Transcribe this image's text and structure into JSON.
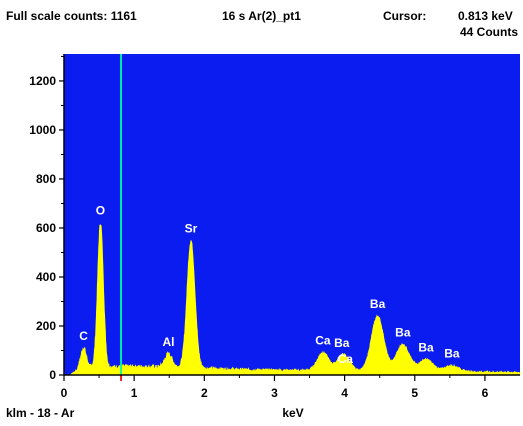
{
  "header": {
    "full_scale": "Full scale counts: 1161",
    "acq": "16 s  Ar(2)_pt1",
    "cursor_label": "Cursor:",
    "cursor_value": "0.813 keV",
    "cursor_counts": "44 Counts"
  },
  "footer": {
    "sample": "klm - 18 - Ar"
  },
  "colors": {
    "plot_bg": "#0a1cf0",
    "spectrum": "#ffff00",
    "cursor": "#00ffa0",
    "cursor_mark": "#ff2020"
  },
  "chart_data": {
    "type": "area",
    "title": "",
    "xlabel": "keV",
    "ylabel": "",
    "xlim": [
      0,
      6.5
    ],
    "ylim": [
      0,
      1310
    ],
    "xticks": [
      0,
      1,
      2,
      3,
      4,
      5,
      6
    ],
    "yticks": [
      0,
      200,
      400,
      600,
      800,
      1000,
      1200
    ],
    "cursor_x": 0.813,
    "background_level": 20,
    "peaks": [
      {
        "label": "C",
        "energy": 0.28,
        "counts": 80
      },
      {
        "label": "O",
        "energy": 0.52,
        "counts": 590
      },
      {
        "label": "Al",
        "energy": 1.49,
        "counts": 55
      },
      {
        "label": "Sr",
        "energy": 1.81,
        "counts": 520
      },
      {
        "label": "Ca",
        "energy": 3.69,
        "counts": 75
      },
      {
        "label": "Ba",
        "energy": 3.96,
        "counts": 40
      },
      {
        "label": "Ca",
        "energy": 4.01,
        "counts": 30
      },
      {
        "label": "Ba",
        "energy": 4.47,
        "counts": 225
      },
      {
        "label": "Ba",
        "energy": 4.83,
        "counts": 110
      },
      {
        "label": "Ba",
        "energy": 5.16,
        "counts": 50
      },
      {
        "label": "Ba",
        "energy": 5.53,
        "counts": 25
      }
    ]
  }
}
